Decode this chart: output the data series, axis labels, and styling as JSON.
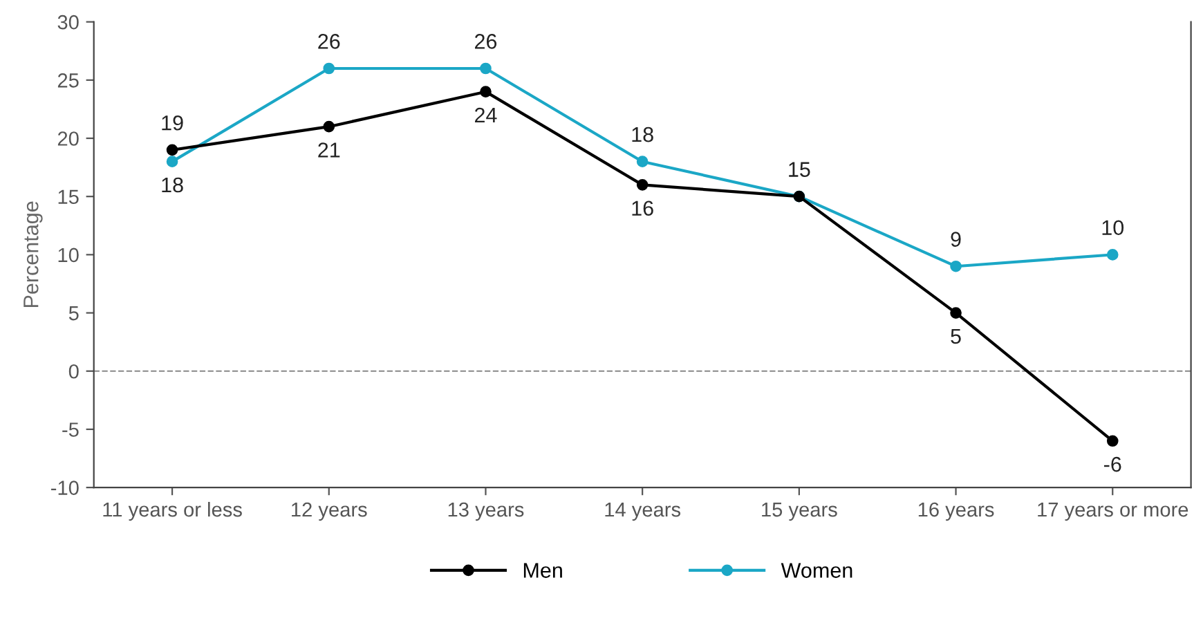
{
  "chart_data": {
    "type": "line",
    "ylabel": "Percentage",
    "categories": [
      "11 years or less",
      "12 years",
      "13 years",
      "14 years",
      "15 years",
      "16 years",
      "17 years or more"
    ],
    "series": [
      {
        "name": "Men",
        "color": "#000000",
        "values": [
          19,
          21,
          24,
          16,
          15,
          5,
          -6
        ],
        "value_labels": [
          "19",
          "21",
          "24",
          "16",
          null,
          "5",
          "-6"
        ]
      },
      {
        "name": "Women",
        "color": "#1ba7c6",
        "values": [
          18,
          26,
          26,
          18,
          15,
          9,
          10
        ],
        "value_labels": [
          "18",
          "26",
          "26",
          "18",
          "15",
          "9",
          "10"
        ]
      }
    ],
    "ylim": [
      -10,
      30
    ],
    "yticks": [
      -10,
      -5,
      0,
      5,
      10,
      15,
      20,
      25,
      30
    ],
    "ref_lines": [
      {
        "axis": "y",
        "value": 0,
        "color": "#888888",
        "line_style": "dashed"
      }
    ],
    "grid": false,
    "legend": "bottom",
    "marker": "circle",
    "line_style": "solid"
  }
}
